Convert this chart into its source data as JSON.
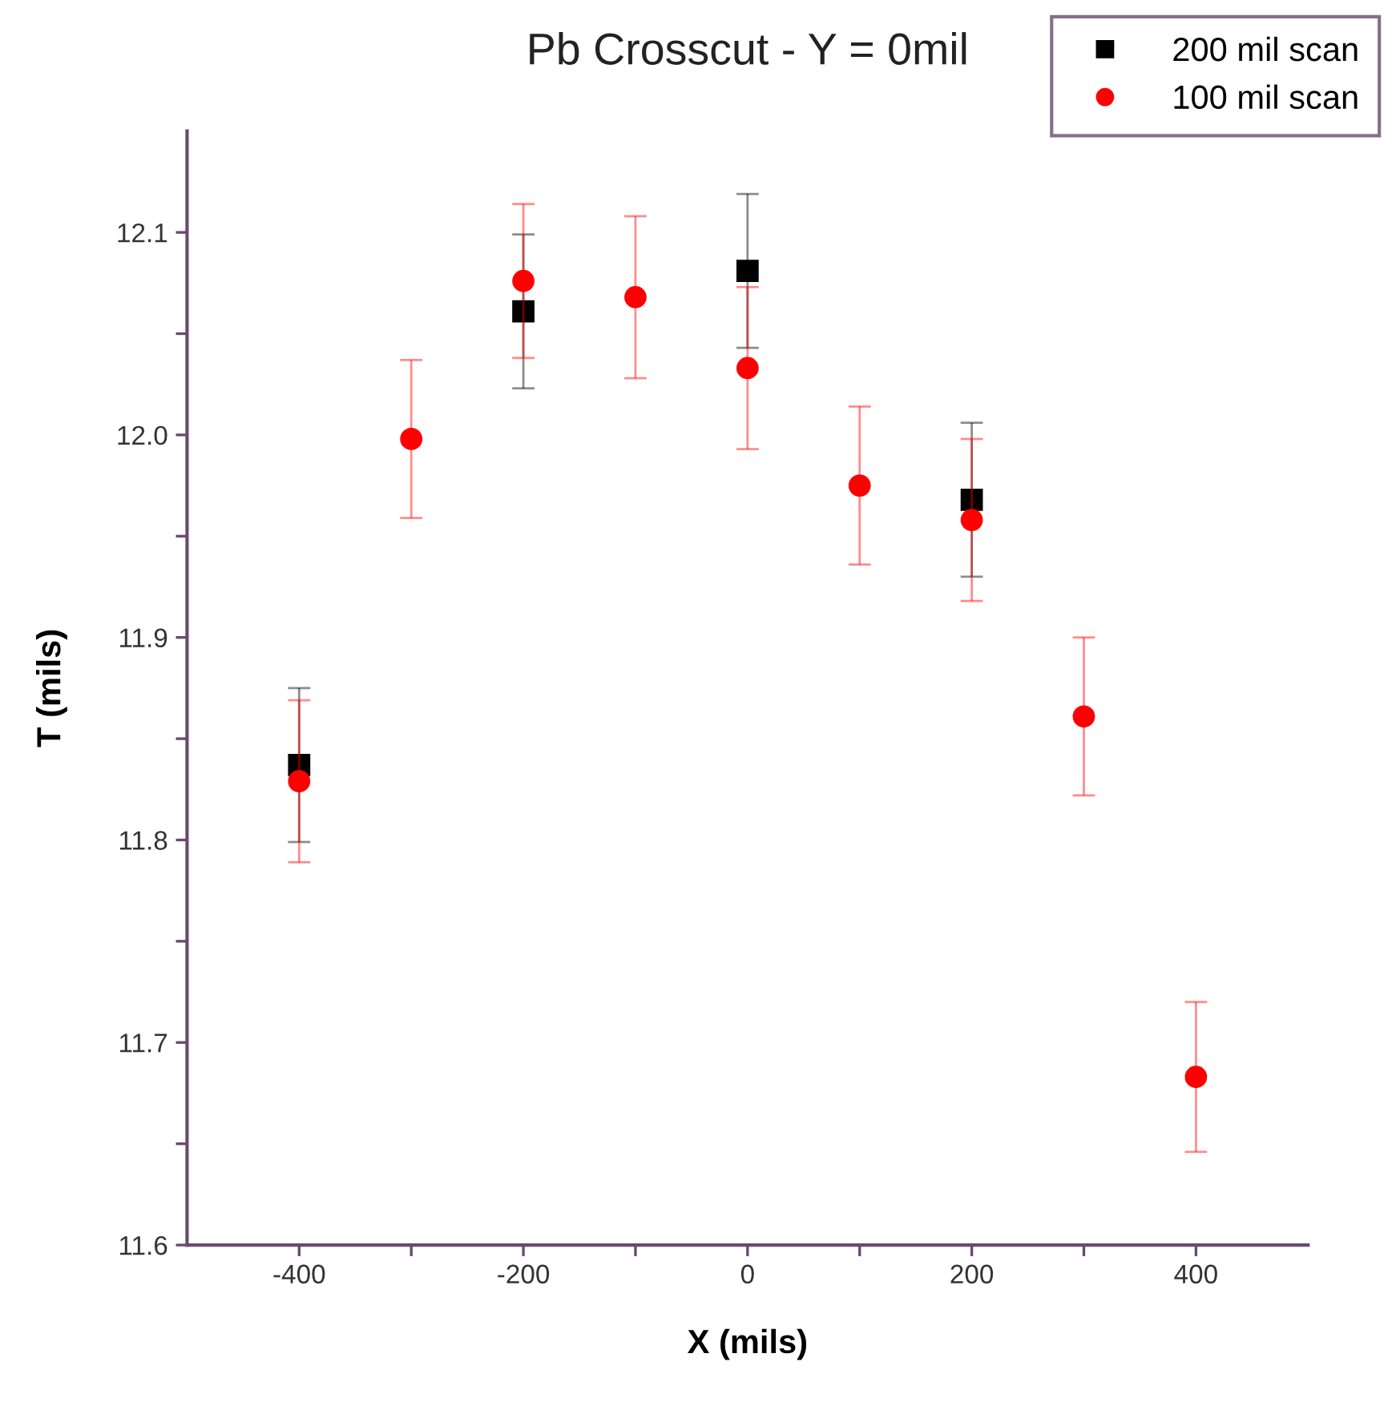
{
  "chart_data": {
    "type": "scatter",
    "title": "Pb Crosscut - Y = 0mil",
    "xlabel": "X (mils)",
    "ylabel": "T (mils)",
    "xlim": [
      -500,
      500
    ],
    "xticks": [
      -400,
      {
        "value": -300,
        "label": null
      },
      -200,
      {
        "value": -100,
        "label": null
      },
      0,
      {
        "value": 100,
        "label": null
      },
      200,
      {
        "value": 300,
        "label": null
      },
      400
    ],
    "ylim": [
      11.6,
      12.15
    ],
    "yticks": [
      11.6,
      {
        "value": 11.65,
        "label": null
      },
      11.7,
      {
        "value": 11.75,
        "label": null
      },
      11.8,
      {
        "value": 11.85,
        "label": null
      },
      11.9,
      {
        "value": 11.95,
        "label": null
      },
      {
        "value": 12.0,
        "label": "12.0"
      },
      {
        "value": 12.05,
        "label": null
      },
      12.1
    ],
    "grid": false,
    "legend": "top right",
    "series": [
      {
        "name": "200 mil scan",
        "color": "#000000",
        "marker": "square",
        "x": [
          -400,
          -200,
          0,
          200
        ],
        "values": [
          11.837,
          12.061,
          12.081,
          11.968
        ],
        "errors": [
          0.038,
          0.038,
          0.038,
          0.038
        ]
      },
      {
        "name": "100 mil scan",
        "color": "#ff0000",
        "marker": "circle",
        "x": [
          -400,
          -300,
          -200,
          -100,
          0,
          100,
          200,
          300,
          400
        ],
        "values": [
          11.829,
          11.998,
          12.076,
          12.068,
          12.033,
          11.975,
          11.958,
          11.861,
          11.683
        ],
        "errors": [
          0.04,
          0.039,
          0.038,
          0.04,
          0.04,
          0.039,
          0.04,
          0.039,
          0.037
        ]
      }
    ]
  }
}
